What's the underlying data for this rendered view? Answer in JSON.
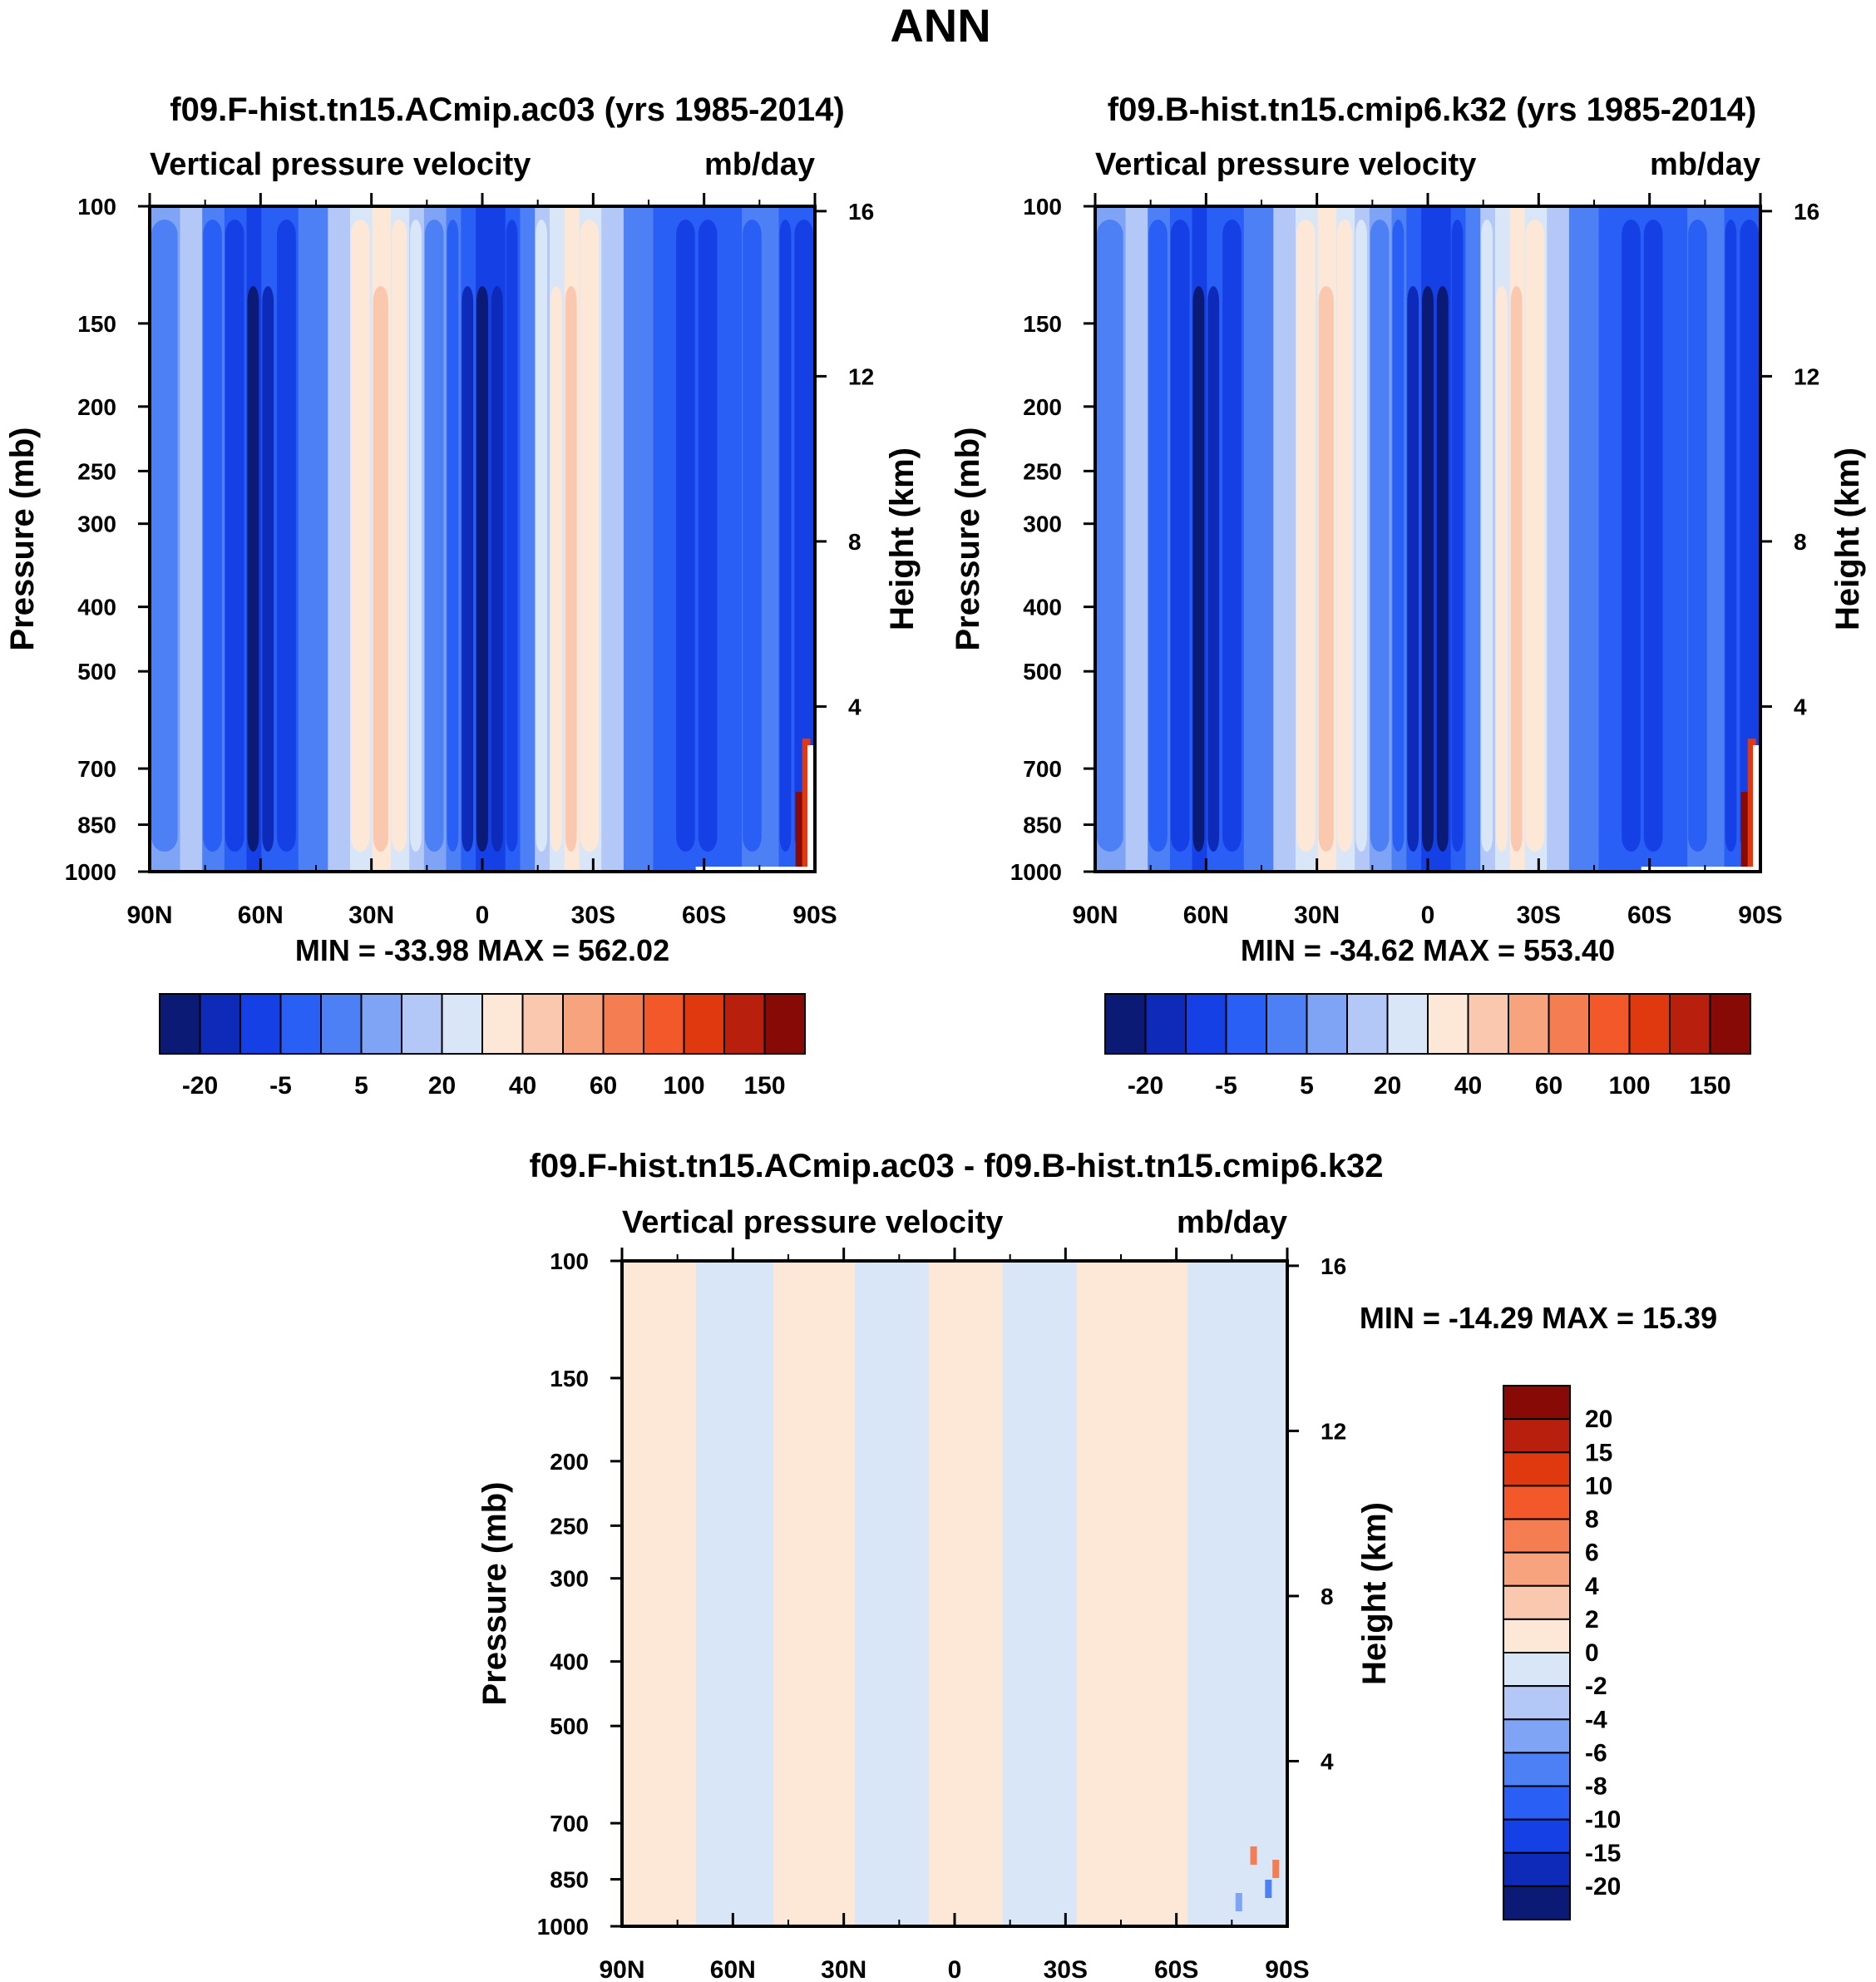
{
  "page": {
    "title": "ANN"
  },
  "chart_data": [
    {
      "type": "heatmap",
      "title": "f09.F-hist.tn15.ACmip.ac03 (yrs 1985-2014)",
      "left_string": "Vertical pressure velocity",
      "right_string": "mb/day",
      "xlabel": "",
      "ylabel": "Pressure (mb)",
      "y2label": "Height (km)",
      "x_ticks": [
        "90N",
        "60N",
        "30N",
        "0",
        "30S",
        "60S",
        "90S"
      ],
      "y_ticks": [
        "100",
        "150",
        "200",
        "250",
        "300",
        "400",
        "500",
        "700",
        "850",
        "1000"
      ],
      "y2_ticks": [
        "16",
        "12",
        "8",
        "4"
      ],
      "stats_text": "MIN = -33.98  MAX = 562.02",
      "min": -33.98,
      "max": 562.02,
      "colorbar": {
        "orientation": "horizontal",
        "labels": [
          "-20",
          "-5",
          "5",
          "20",
          "40",
          "60",
          "100",
          "150"
        ],
        "colors": [
          "#0a1a75",
          "#0d2ab8",
          "#1540e6",
          "#2a5ff5",
          "#4d80f5",
          "#7fa3f5",
          "#b3c8f7",
          "#d9e6f8",
          "#fde8d8",
          "#fac8ae",
          "#f7a37e",
          "#f57d52",
          "#f2582a",
          "#e0380f",
          "#b81f0c",
          "#870a06"
        ]
      },
      "field": "bands",
      "bands": [
        {
          "lat": -90,
          "v": -11
        },
        {
          "lat": -84,
          "v": -11
        },
        {
          "lat": -80,
          "v": -5
        },
        {
          "lat": -76,
          "v": -9
        },
        {
          "lat": -70,
          "v": -10
        },
        {
          "lat": -64,
          "v": -12
        },
        {
          "lat": -58,
          "v": -14
        },
        {
          "lat": -52,
          "v": -10
        },
        {
          "lat": -46,
          "v": -4
        },
        {
          "lat": -38,
          "v": 3
        },
        {
          "lat": -32,
          "v": 12
        },
        {
          "lat": -26,
          "v": 20
        },
        {
          "lat": -22,
          "v": 16
        },
        {
          "lat": -18,
          "v": 6
        },
        {
          "lat": -14,
          "v": -4
        },
        {
          "lat": -10,
          "v": -12
        },
        {
          "lat": -6,
          "v": -20
        },
        {
          "lat": -2,
          "v": -24
        },
        {
          "lat": 2,
          "v": -16
        },
        {
          "lat": 6,
          "v": -8
        },
        {
          "lat": 10,
          "v": -3
        },
        {
          "lat": 16,
          "v": 6
        },
        {
          "lat": 20,
          "v": 14
        },
        {
          "lat": 25,
          "v": 20
        },
        {
          "lat": 30,
          "v": 14
        },
        {
          "lat": 36,
          "v": 4
        },
        {
          "lat": 42,
          "v": -5
        },
        {
          "lat": 50,
          "v": -12
        },
        {
          "lat": 56,
          "v": -16
        },
        {
          "lat": 60,
          "v": -22
        },
        {
          "lat": 64,
          "v": -14
        },
        {
          "lat": 70,
          "v": -6
        },
        {
          "lat": 76,
          "v": 3
        },
        {
          "lat": 82,
          "v": -3
        },
        {
          "lat": 90,
          "v": -6
        }
      ],
      "hotspot": {
        "lat": -87,
        "v": 150
      }
    },
    {
      "type": "heatmap",
      "title": "f09.B-hist.tn15.cmip6.k32 (yrs 1985-2014)",
      "left_string": "Vertical pressure velocity",
      "right_string": "mb/day",
      "xlabel": "",
      "ylabel": "Pressure (mb)",
      "y2label": "Height (km)",
      "x_ticks": [
        "90N",
        "60N",
        "30N",
        "0",
        "30S",
        "60S",
        "90S"
      ],
      "y_ticks": [
        "100",
        "150",
        "200",
        "250",
        "300",
        "400",
        "500",
        "700",
        "850",
        "1000"
      ],
      "y2_ticks": [
        "16",
        "12",
        "8",
        "4"
      ],
      "stats_text": "MIN = -34.62  MAX = 553.40",
      "min": -34.62,
      "max": 553.4,
      "colorbar": {
        "orientation": "horizontal",
        "labels": [
          "-20",
          "-5",
          "5",
          "20",
          "40",
          "60",
          "100",
          "150"
        ],
        "colors": [
          "#0a1a75",
          "#0d2ab8",
          "#1540e6",
          "#2a5ff5",
          "#4d80f5",
          "#7fa3f5",
          "#b3c8f7",
          "#d9e6f8",
          "#fde8d8",
          "#fac8ae",
          "#f7a37e",
          "#f57d52",
          "#f2582a",
          "#e0380f",
          "#b81f0c",
          "#870a06"
        ]
      },
      "field": "bands",
      "bands": [
        {
          "lat": -90,
          "v": -11
        },
        {
          "lat": -84,
          "v": -11
        },
        {
          "lat": -80,
          "v": -5
        },
        {
          "lat": -76,
          "v": -9
        },
        {
          "lat": -70,
          "v": -10
        },
        {
          "lat": -64,
          "v": -12
        },
        {
          "lat": -58,
          "v": -15
        },
        {
          "lat": -52,
          "v": -10
        },
        {
          "lat": -46,
          "v": -4
        },
        {
          "lat": -38,
          "v": 3
        },
        {
          "lat": -32,
          "v": 12
        },
        {
          "lat": -26,
          "v": 21
        },
        {
          "lat": -22,
          "v": 16
        },
        {
          "lat": -18,
          "v": 6
        },
        {
          "lat": -14,
          "v": -4
        },
        {
          "lat": -10,
          "v": -12
        },
        {
          "lat": -6,
          "v": -21
        },
        {
          "lat": -2,
          "v": -25
        },
        {
          "lat": 2,
          "v": -16
        },
        {
          "lat": 6,
          "v": -8
        },
        {
          "lat": 10,
          "v": -3
        },
        {
          "lat": 16,
          "v": 6
        },
        {
          "lat": 20,
          "v": 14
        },
        {
          "lat": 25,
          "v": 21
        },
        {
          "lat": 30,
          "v": 14
        },
        {
          "lat": 36,
          "v": 4
        },
        {
          "lat": 42,
          "v": -5
        },
        {
          "lat": 50,
          "v": -12
        },
        {
          "lat": 56,
          "v": -16
        },
        {
          "lat": 60,
          "v": -22
        },
        {
          "lat": 64,
          "v": -14
        },
        {
          "lat": 70,
          "v": -6
        },
        {
          "lat": 76,
          "v": 3
        },
        {
          "lat": 82,
          "v": -3
        },
        {
          "lat": 90,
          "v": -6
        }
      ],
      "hotspot": {
        "lat": -87,
        "v": 150
      }
    },
    {
      "type": "heatmap",
      "title": "f09.F-hist.tn15.ACmip.ac03 - f09.B-hist.tn15.cmip6.k32",
      "left_string": "Vertical pressure velocity",
      "right_string": "mb/day",
      "xlabel": "",
      "ylabel": "Pressure (mb)",
      "y2label": "Height (km)",
      "x_ticks": [
        "90N",
        "60N",
        "30N",
        "0",
        "30S",
        "60S",
        "90S"
      ],
      "y_ticks": [
        "100",
        "150",
        "200",
        "250",
        "300",
        "400",
        "500",
        "700",
        "850",
        "1000"
      ],
      "y2_ticks": [
        "16",
        "12",
        "8",
        "4"
      ],
      "stats_text": "MIN = -14.29  MAX =  15.39",
      "min": -14.29,
      "max": 15.39,
      "colorbar": {
        "orientation": "vertical",
        "labels": [
          "20",
          "15",
          "10",
          "8",
          "6",
          "4",
          "2",
          "0",
          "-2",
          "-4",
          "-6",
          "-8",
          "-10",
          "-15",
          "-20"
        ],
        "colors": [
          "#870a06",
          "#b81f0c",
          "#e0380f",
          "#f2582a",
          "#f57d52",
          "#f7a37e",
          "#fac8ae",
          "#fde8d8",
          "#d9e6f8",
          "#b3c8f7",
          "#7fa3f5",
          "#4d80f5",
          "#2a5ff5",
          "#1540e6",
          "#0d2ab8",
          "#0a1a75"
        ]
      },
      "field": "diff",
      "diff_regions": [
        {
          "from": 90,
          "to": 70,
          "sign": "pos"
        },
        {
          "from": 70,
          "to": 49,
          "sign": "neg"
        },
        {
          "from": 49,
          "to": 27,
          "sign": "pos"
        },
        {
          "from": 27,
          "to": 7,
          "sign": "neg"
        },
        {
          "from": 7,
          "to": -13,
          "sign": "pos"
        },
        {
          "from": -13,
          "to": -33,
          "sign": "neg"
        },
        {
          "from": -33,
          "to": -63,
          "sign": "pos"
        },
        {
          "from": -63,
          "to": -90,
          "sign": "neg"
        }
      ]
    }
  ]
}
